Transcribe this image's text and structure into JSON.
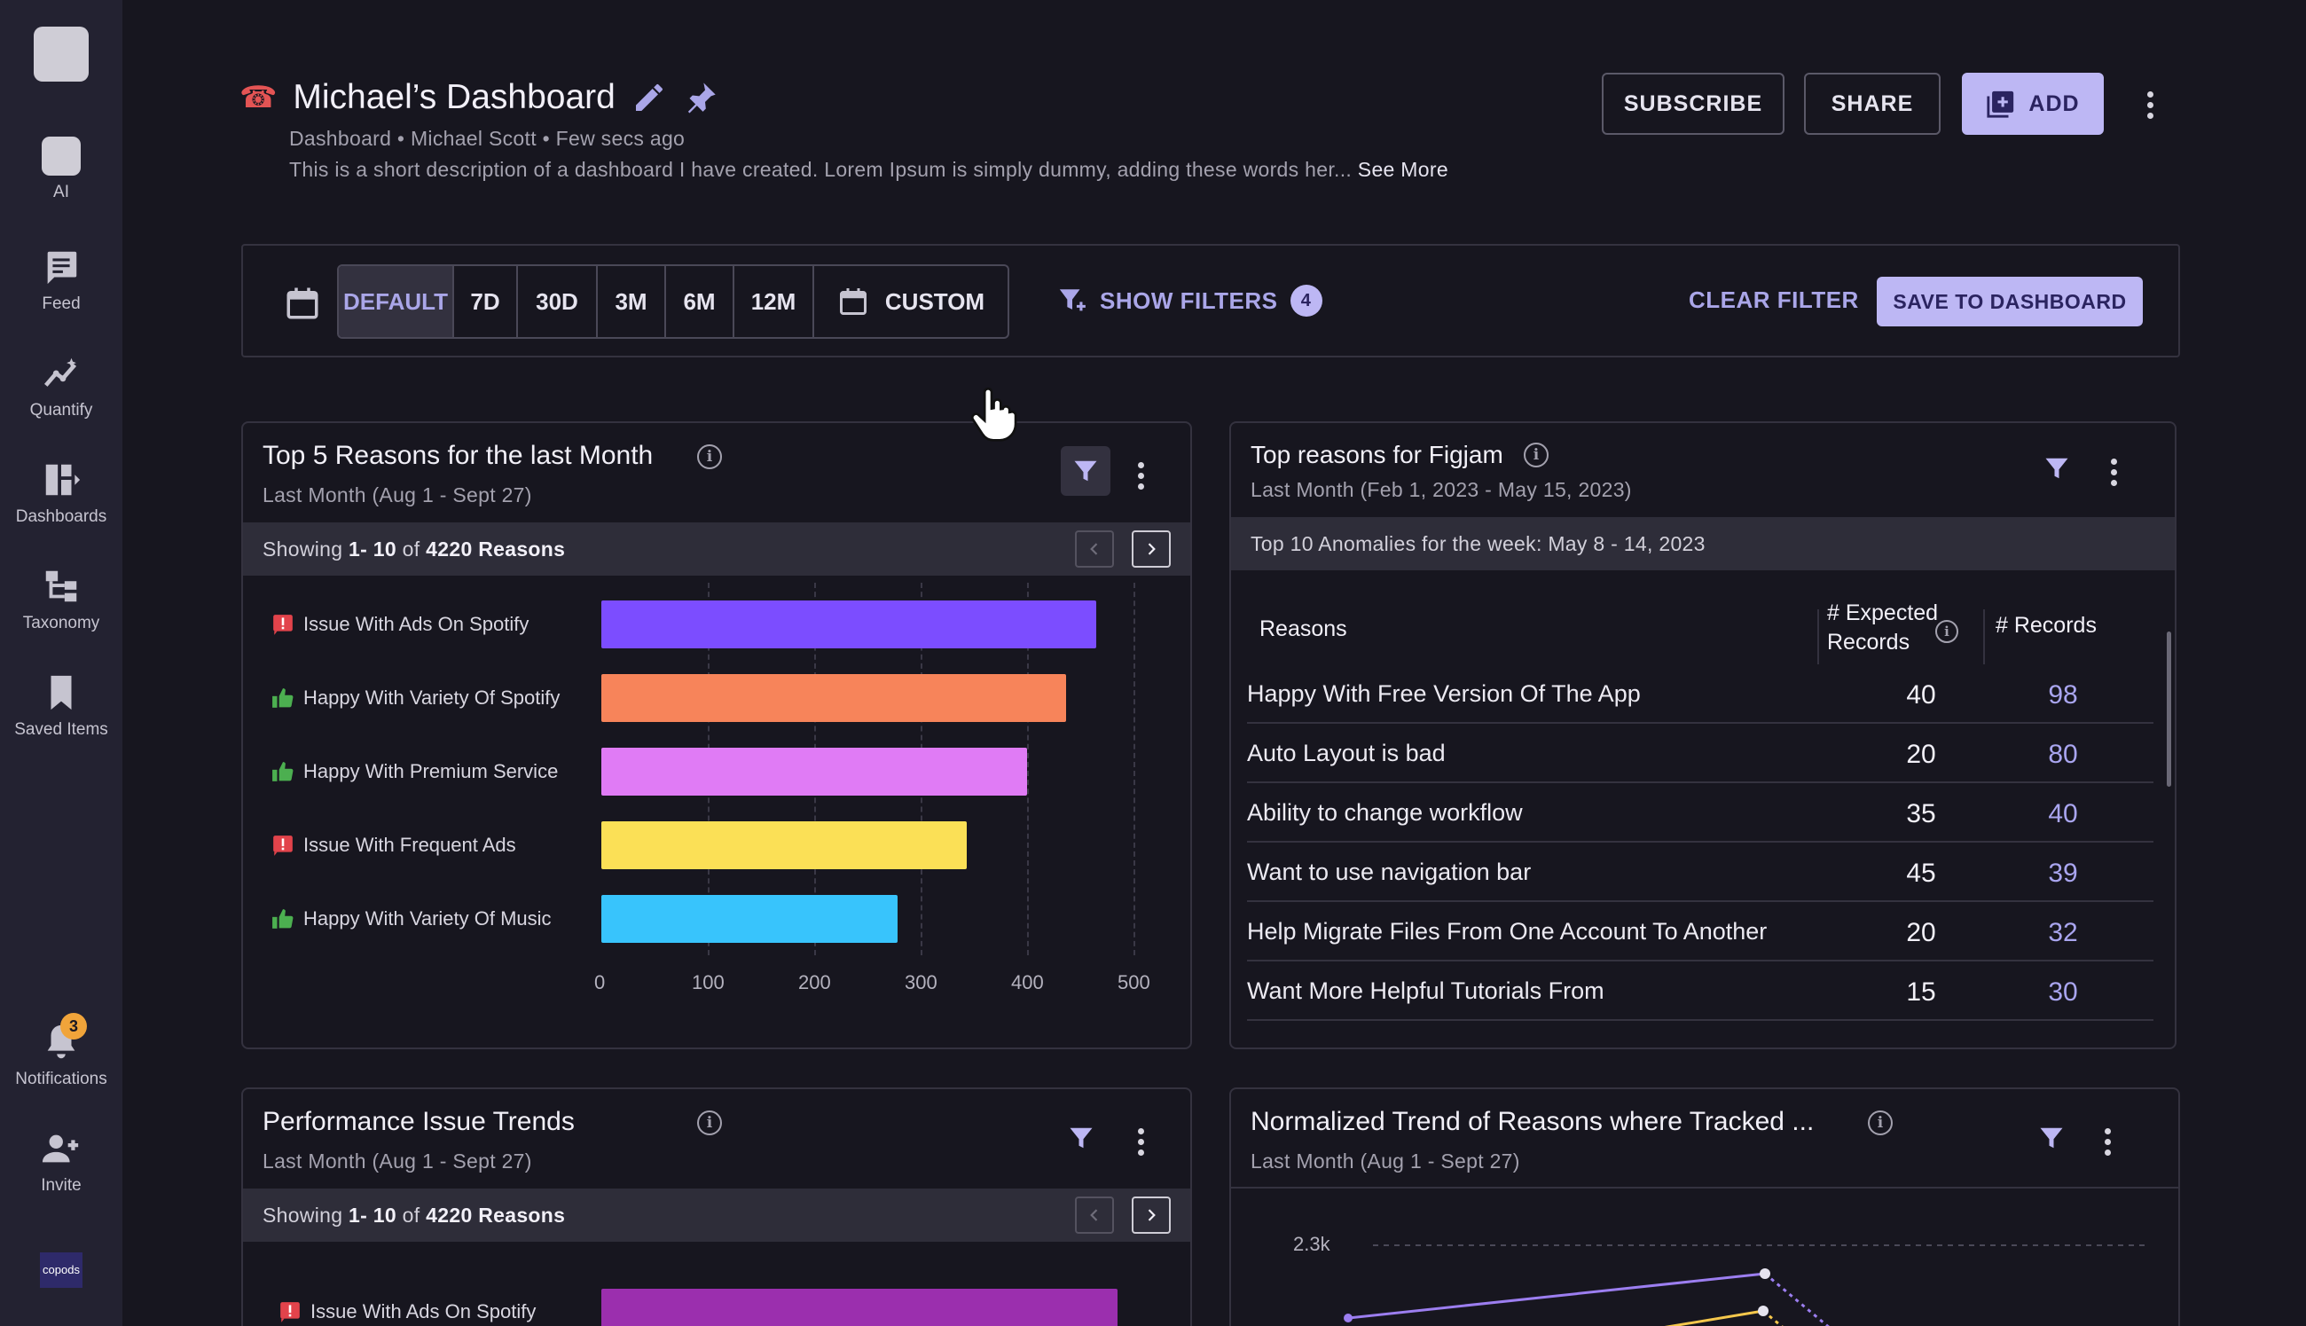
{
  "sidebar": {
    "items": [
      {
        "label": "AI",
        "icon": "ai-icon"
      },
      {
        "label": "Feed",
        "icon": "feed-icon"
      },
      {
        "label": "Quantify",
        "icon": "quantify-icon"
      },
      {
        "label": "Dashboards",
        "icon": "dashboards-icon"
      },
      {
        "label": "Taxonomy",
        "icon": "taxonomy-icon"
      },
      {
        "label": "Saved Items",
        "icon": "bookmark-icon"
      }
    ],
    "notifications": {
      "label": "Notifications",
      "count": "3"
    },
    "invite": {
      "label": "Invite"
    },
    "brand": "copods"
  },
  "header": {
    "title": "Michael’s Dashboard",
    "meta": "Dashboard • Michael Scott • Few secs ago",
    "description": "This is a short description of a dashboard I have created. Lorem Ipsum is simply dummy, adding these words her...",
    "see_more": "See More",
    "subscribe": "SUBSCRIBE",
    "share": "SHARE",
    "add": "ADD"
  },
  "filters": {
    "ranges": [
      "DEFAULT",
      "7D",
      "30D",
      "3M",
      "6M",
      "12M"
    ],
    "active_range": "DEFAULT",
    "custom": "CUSTOM",
    "show_filters": "SHOW FILTERS",
    "filter_count": "4",
    "clear_filter": "CLEAR FILTER",
    "save_to_dashboard": "SAVE TO DASHBOARD"
  },
  "card1": {
    "title": "Top 5 Reasons for the last Month",
    "subtitle": "Last Month (Aug 1 - Sept 27)",
    "showing_prefix": "Showing",
    "showing_range": "1- 10",
    "showing_of": "of",
    "showing_total": "4220 Reasons",
    "chart_data": {
      "type": "bar",
      "orientation": "horizontal",
      "categories": [
        "Issue With Ads On Spotify",
        "Happy With Variety Of Spotify",
        "Happy With Premium Service",
        "Issue With Frequent Ads",
        "Happy With Variety Of Music"
      ],
      "sentiment": [
        "negative",
        "positive",
        "positive",
        "negative",
        "positive"
      ],
      "values": [
        465,
        437,
        400,
        343,
        278
      ],
      "colors": [
        "#7c4dff",
        "#f7845a",
        "#e07bf5",
        "#fbe056",
        "#38c4fc"
      ],
      "xlim": [
        0,
        500
      ],
      "xticks": [
        0,
        100,
        200,
        300,
        400,
        500
      ]
    }
  },
  "card2": {
    "title": "Top reasons for Figjam",
    "subtitle": "Last Month (Feb 1, 2023 - May 15, 2023)",
    "strip": "Top 10 Anomalies for the week: May 8 - 14, 2023",
    "columns": {
      "reasons": "Reasons",
      "expected_1": "# Expected",
      "expected_2": "Records",
      "records": "# Records"
    },
    "rows": [
      {
        "reason": "Happy With Free Version Of The App",
        "expected": "40",
        "records": "98"
      },
      {
        "reason": "Auto Layout is bad",
        "expected": "20",
        "records": "80"
      },
      {
        "reason": "Ability to change workflow",
        "expected": "35",
        "records": "40"
      },
      {
        "reason": "Want to use navigation bar",
        "expected": "45",
        "records": "39"
      },
      {
        "reason": "Help Migrate Files From One Account To Another",
        "expected": "20",
        "records": "32"
      },
      {
        "reason": "Want More Helpful Tutorials From",
        "expected": "15",
        "records": "30"
      }
    ]
  },
  "card3": {
    "title": "Performance Issue Trends",
    "subtitle": "Last Month (Aug 1 - Sept 27)",
    "showing_prefix": "Showing",
    "showing_range": "1- 10",
    "showing_of": "of",
    "showing_total": "4220 Reasons",
    "first_bar_label": "Issue With Ads On Spotify",
    "first_bar_color": "#9b2fae"
  },
  "card4": {
    "title": "Normalized Trend of Reasons where Tracked ...",
    "subtitle": "Last Month (Aug 1 - Sept 27)",
    "y_tick_top": "2.3k"
  }
}
